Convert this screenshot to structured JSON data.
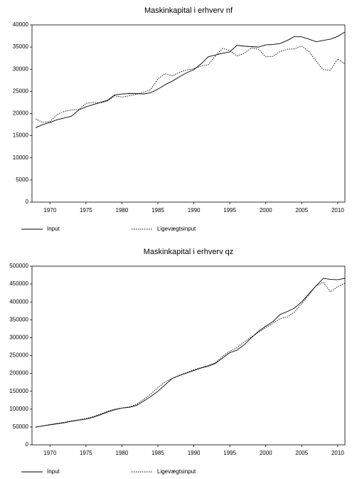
{
  "chart_data": [
    {
      "type": "line",
      "title": "Maskinkapital i erhverv nf",
      "x": [
        1968,
        1969,
        1970,
        1971,
        1972,
        1973,
        1974,
        1975,
        1976,
        1977,
        1978,
        1979,
        1980,
        1981,
        1982,
        1983,
        1984,
        1985,
        1986,
        1987,
        1988,
        1989,
        1990,
        1991,
        1992,
        1993,
        1994,
        1995,
        1996,
        1997,
        1998,
        1999,
        2000,
        2001,
        2002,
        2003,
        2004,
        2005,
        2006,
        2007,
        2008,
        2009,
        2010,
        2011
      ],
      "series": [
        {
          "name": "Input",
          "color": "#000000",
          "dash": "solid",
          "values": [
            16800,
            17500,
            18000,
            18600,
            19000,
            19400,
            20800,
            21500,
            22000,
            22500,
            23000,
            24200,
            24400,
            24500,
            24500,
            24400,
            24700,
            25500,
            26500,
            27300,
            28300,
            29200,
            29900,
            31200,
            32800,
            33200,
            33600,
            33900,
            35400,
            35200,
            35100,
            35000,
            35500,
            35600,
            35800,
            36500,
            37400,
            37300,
            36800,
            36200,
            36500,
            36800,
            37400,
            38400
          ]
        },
        {
          "name": "Ligevægtsinput",
          "color": "#000000",
          "dash": "dotted",
          "values": [
            18800,
            18000,
            18200,
            19800,
            20500,
            20800,
            20900,
            22300,
            22500,
            22400,
            22800,
            24000,
            23700,
            24000,
            24300,
            24800,
            25400,
            27800,
            29000,
            28500,
            29300,
            29800,
            30100,
            30700,
            31000,
            33000,
            34700,
            34200,
            33000,
            33600,
            34800,
            34500,
            32800,
            32900,
            34000,
            34500,
            34600,
            35200,
            34000,
            31800,
            29900,
            29800,
            32300,
            31200
          ]
        }
      ],
      "xlim": [
        1967.5,
        2011
      ],
      "xticks": [
        1970,
        1975,
        1980,
        1985,
        1990,
        1995,
        2000,
        2005,
        2010
      ],
      "ylim": [
        0,
        40000
      ],
      "yticks": [
        0,
        5000,
        10000,
        15000,
        20000,
        25000,
        30000,
        35000,
        40000
      ],
      "legend": "bottom"
    },
    {
      "type": "line",
      "title": "Maskinkapital i erhverv qz",
      "x": [
        1968,
        1969,
        1970,
        1971,
        1972,
        1973,
        1974,
        1975,
        1976,
        1977,
        1978,
        1979,
        1980,
        1981,
        1982,
        1983,
        1984,
        1985,
        1986,
        1987,
        1988,
        1989,
        1990,
        1991,
        1992,
        1993,
        1994,
        1995,
        1996,
        1997,
        1998,
        1999,
        2000,
        2001,
        2002,
        2003,
        2004,
        2005,
        2006,
        2007,
        2008,
        2009,
        2010,
        2011
      ],
      "series": [
        {
          "name": "Input",
          "color": "#000000",
          "dash": "solid",
          "values": [
            50000,
            53000,
            56000,
            59000,
            62000,
            66000,
            69000,
            72000,
            77000,
            84000,
            92000,
            98000,
            103000,
            105000,
            110000,
            122000,
            135000,
            150000,
            168000,
            186000,
            194000,
            201000,
            208000,
            215000,
            220000,
            228000,
            243000,
            258000,
            265000,
            280000,
            300000,
            318000,
            332000,
            345000,
            365000,
            373000,
            383000,
            400000,
            423000,
            445000,
            466000,
            463000,
            462000,
            466000
          ]
        },
        {
          "name": "Ligevægtsinput",
          "color": "#000000",
          "dash": "dotted",
          "values": [
            49000,
            53000,
            57000,
            60000,
            63000,
            67000,
            70000,
            74000,
            79000,
            86000,
            94000,
            100000,
            103000,
            106000,
            113000,
            127000,
            142000,
            160000,
            176000,
            186000,
            195000,
            202000,
            210000,
            216000,
            222000,
            230000,
            248000,
            262000,
            272000,
            288000,
            302000,
            315000,
            328000,
            340000,
            353000,
            358000,
            372000,
            395000,
            420000,
            445000,
            455000,
            428000,
            443000,
            452000
          ]
        }
      ],
      "xlim": [
        1967.5,
        2011
      ],
      "xticks": [
        1970,
        1975,
        1980,
        1985,
        1990,
        1995,
        2000,
        2005,
        2010
      ],
      "ylim": [
        0,
        500000
      ],
      "yticks": [
        0,
        50000,
        100000,
        150000,
        200000,
        250000,
        300000,
        350000,
        400000,
        450000,
        500000
      ],
      "legend": "bottom"
    }
  ]
}
